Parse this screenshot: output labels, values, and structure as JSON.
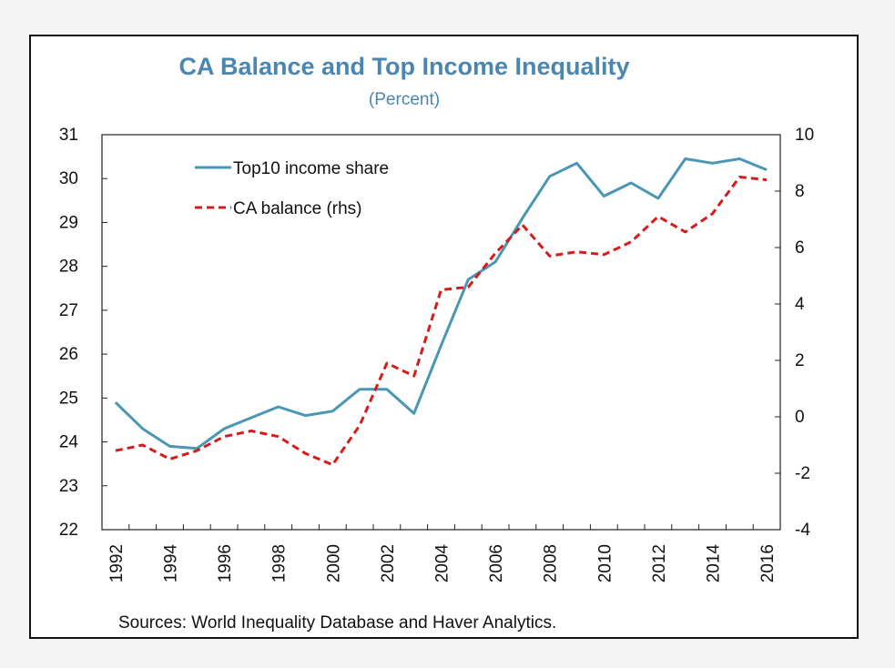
{
  "colors": {
    "title": "#4a86b0",
    "top10": "#4a96b4",
    "ca": "#d41c1c",
    "axis": "#222222"
  },
  "chart_data": {
    "type": "line",
    "title": "CA Balance and Top Income Inequality",
    "subtitle": "(Percent)",
    "x": [
      1992,
      1993,
      1994,
      1995,
      1996,
      1997,
      1998,
      1999,
      2000,
      2001,
      2002,
      2003,
      2004,
      2005,
      2006,
      2007,
      2008,
      2009,
      2010,
      2011,
      2012,
      2013,
      2014,
      2015,
      2016
    ],
    "x_tick_labels": [
      "1992",
      "1994",
      "1996",
      "1998",
      "2000",
      "2002",
      "2004",
      "2006",
      "2008",
      "2010",
      "2012",
      "2014",
      "2016"
    ],
    "y_left": {
      "range": [
        22,
        31
      ],
      "ticks": [
        "22",
        "23",
        "24",
        "25",
        "26",
        "27",
        "28",
        "29",
        "30",
        "31"
      ]
    },
    "y_right": {
      "range": [
        -4,
        10
      ],
      "ticks": [
        "-4",
        "-2",
        "0",
        "2",
        "4",
        "6",
        "8",
        "10"
      ]
    },
    "series": [
      {
        "name": "Top10 income share",
        "axis": "left",
        "style": "solid",
        "values": [
          24.9,
          24.3,
          23.9,
          23.85,
          24.3,
          24.55,
          24.8,
          24.6,
          24.7,
          25.2,
          25.2,
          24.65,
          26.2,
          27.7,
          28.1,
          29.1,
          30.05,
          30.35,
          29.6,
          29.9,
          29.55,
          30.45,
          30.35,
          30.45,
          30.2
        ]
      },
      {
        "name": "CA balance (rhs)",
        "axis": "right",
        "style": "dashed",
        "values": [
          -1.2,
          -1.0,
          -1.5,
          -1.2,
          -0.7,
          -0.5,
          -0.7,
          -1.3,
          -1.7,
          -0.3,
          1.9,
          1.45,
          4.5,
          4.6,
          5.8,
          6.8,
          5.7,
          5.85,
          5.75,
          6.2,
          7.1,
          6.55,
          7.2,
          8.5,
          8.4
        ]
      }
    ]
  },
  "source_note": "Sources:  World Inequality Database and Haver Analytics."
}
